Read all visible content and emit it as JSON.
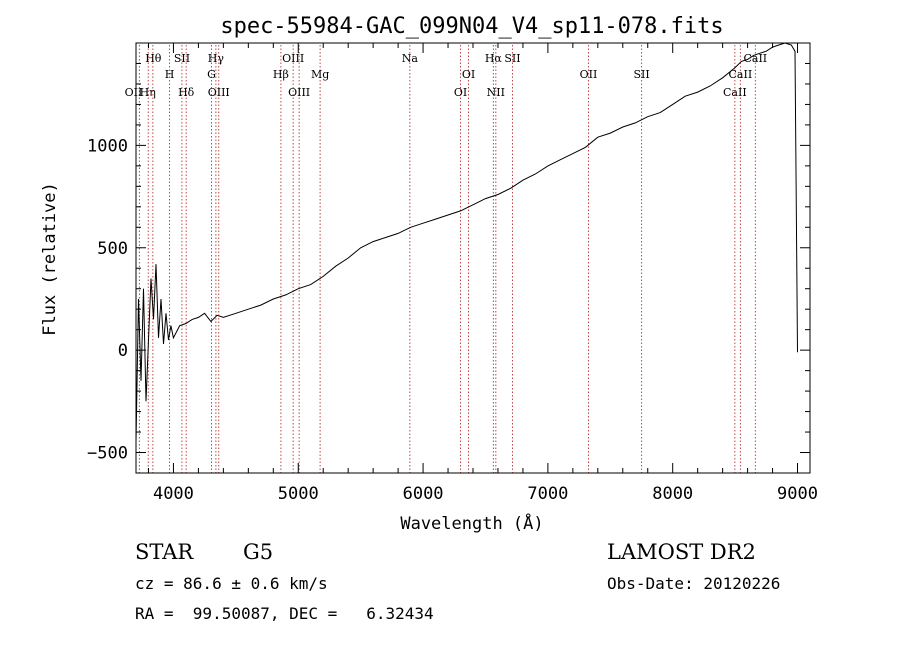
{
  "chart_data": {
    "type": "line",
    "title": "spec-55984-GAC_099N04_V4_sp11-078.fits",
    "xlabel": "Wavelength (Å)",
    "ylabel": "Flux (relative)",
    "xlim": [
      3700,
      9100
    ],
    "ylim": [
      -600,
      1500
    ],
    "xticks": [
      4000,
      5000,
      6000,
      7000,
      8000,
      9000
    ],
    "yticks": [
      -500,
      0,
      500,
      1000
    ],
    "grid": false,
    "series": [
      {
        "x": [
          3700,
          3720,
          3740,
          3760,
          3780,
          3800,
          3820,
          3840,
          3860,
          3880,
          3900,
          3920,
          3940,
          3960,
          3980,
          4000,
          4050,
          4100,
          4150,
          4200,
          4250,
          4300,
          4350,
          4400,
          4500,
          4600,
          4700,
          4800,
          4900,
          5000,
          5100,
          5200,
          5300,
          5400,
          5500,
          5600,
          5700,
          5800,
          5900,
          6000,
          6100,
          6200,
          6300,
          6400,
          6500,
          6600,
          6700,
          6800,
          6900,
          7000,
          7100,
          7200,
          7300,
          7400,
          7500,
          7600,
          7700,
          7800,
          7900,
          8000,
          8100,
          8200,
          8300,
          8400,
          8500,
          8550,
          8600,
          8650,
          8700,
          8750,
          8800,
          8850,
          8900,
          8950,
          8980,
          9000
        ],
        "values": [
          -450,
          250,
          -150,
          300,
          -250,
          50,
          350,
          150,
          420,
          60,
          250,
          30,
          180,
          50,
          120,
          60,
          120,
          130,
          150,
          160,
          180,
          140,
          170,
          160,
          180,
          200,
          220,
          250,
          270,
          300,
          320,
          360,
          410,
          450,
          500,
          530,
          550,
          570,
          600,
          620,
          640,
          660,
          680,
          710,
          740,
          760,
          790,
          830,
          860,
          900,
          930,
          960,
          990,
          1040,
          1060,
          1090,
          1110,
          1140,
          1160,
          1200,
          1240,
          1260,
          1290,
          1330,
          1380,
          1410,
          1420,
          1440,
          1450,
          1460,
          1480,
          1490,
          1500,
          1490,
          1460,
          -10
        ]
      }
    ],
    "lines": [
      {
        "name": "Hθ",
        "x": 3798,
        "row": 0,
        "pos": "right"
      },
      {
        "name": "OII",
        "x": 3727,
        "row": 2,
        "pos": "left"
      },
      {
        "name": "Hη",
        "x": 3835,
        "row": 2,
        "pos": "left"
      },
      {
        "name": "H",
        "x": 3969,
        "row": 1,
        "pos": "center"
      },
      {
        "name": "SII",
        "x": 4068,
        "row": 0,
        "pos": "center"
      },
      {
        "name": "Hδ",
        "x": 4102,
        "row": 2,
        "pos": "center"
      },
      {
        "name": "Hγ",
        "x": 4340,
        "row": 0,
        "pos": "center"
      },
      {
        "name": "G",
        "x": 4305,
        "row": 1,
        "pos": "center"
      },
      {
        "name": "OIII",
        "x": 4363,
        "row": 2,
        "pos": "center"
      },
      {
        "name": "Hβ",
        "x": 4861,
        "row": 1,
        "pos": "center"
      },
      {
        "name": "OIII",
        "x": 4959,
        "row": 0,
        "pos": "center"
      },
      {
        "name": "OIII",
        "x": 5007,
        "row": 2,
        "pos": "center"
      },
      {
        "name": "Mg",
        "x": 5175,
        "row": 1,
        "pos": "center"
      },
      {
        "name": "Na",
        "x": 5894,
        "row": 0,
        "pos": "center"
      },
      {
        "name": "OI",
        "x": 6300,
        "row": 2,
        "pos": "center"
      },
      {
        "name": "OI",
        "x": 6364,
        "row": 1,
        "pos": "center"
      },
      {
        "name": "Hα",
        "x": 6563,
        "row": 0,
        "pos": "center"
      },
      {
        "name": "NII",
        "x": 6583,
        "row": 2,
        "pos": "center"
      },
      {
        "name": "SII",
        "x": 6716,
        "row": 0,
        "pos": "center"
      },
      {
        "name": "OII",
        "x": 7325,
        "row": 1,
        "pos": "center"
      },
      {
        "name": "SII",
        "x": 7751,
        "row": 1,
        "pos": "center"
      },
      {
        "name": "CaII",
        "x": 8498,
        "row": 2,
        "pos": "center"
      },
      {
        "name": "CaII",
        "x": 8542,
        "row": 1,
        "pos": "center"
      },
      {
        "name": "CaII",
        "x": 8662,
        "row": 0,
        "pos": "center"
      }
    ]
  },
  "info": {
    "class": "STAR",
    "subclass": "G5",
    "survey": "LAMOST DR2",
    "cz": "cz = 86.6 ± 0.6 km/s",
    "obs_date": "Obs-Date: 20120226",
    "radec": "RA =  99.50087, DEC =   6.32434"
  }
}
